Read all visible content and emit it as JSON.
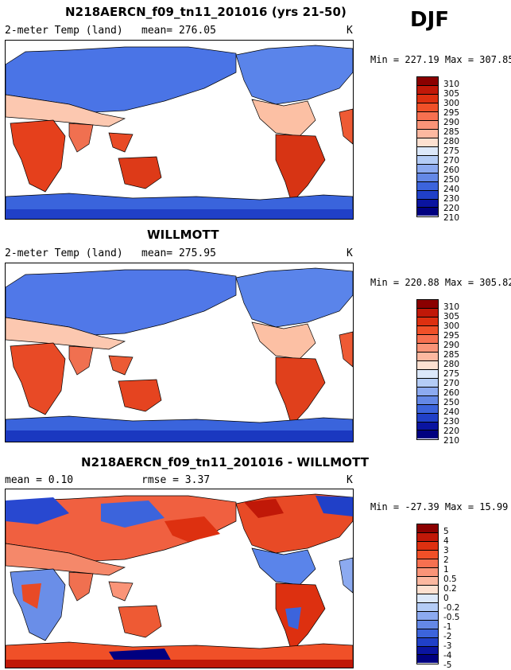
{
  "season": "DJF",
  "panels": [
    {
      "title": "N218AERCN_f09_tn11_201016 (yrs 21-50)",
      "left_label": "2-meter Temp (land)",
      "mid_label": "mean= 276.05",
      "units": "K",
      "minmax": "Min = 227.19 Max = 307.85",
      "levels": [
        "310",
        "305",
        "300",
        "295",
        "290",
        "285",
        "280",
        "275",
        "270",
        "260",
        "250",
        "240",
        "230",
        "220",
        "210"
      ]
    },
    {
      "title": "WILLMOTT",
      "left_label": "2-meter Temp (land)",
      "mid_label": "mean= 275.95",
      "units": "K",
      "minmax": "Min = 220.88 Max = 305.82",
      "levels": [
        "310",
        "305",
        "300",
        "295",
        "290",
        "285",
        "280",
        "275",
        "270",
        "260",
        "250",
        "240",
        "230",
        "220",
        "210"
      ]
    },
    {
      "title": "N218AERCN_f09_tn11_201016 - WILLMOTT",
      "left_label": "mean =   0.10",
      "mid_label": "rmse =   3.37",
      "units": "K",
      "minmax": "Min = -27.39 Max =  15.99",
      "levels": [
        "5",
        "4",
        "3",
        "2",
        "1",
        "0.5",
        "0.2",
        "0",
        "-0.2",
        "-0.5",
        "-1",
        "-2",
        "-3",
        "-4",
        "-5"
      ]
    }
  ],
  "colors": {
    "scale": [
      "#8b0000",
      "#c01808",
      "#dd3010",
      "#f05028",
      "#f77050",
      "#fa9478",
      "#fcb8a0",
      "#fde0d0",
      "#dce8fa",
      "#b4ccf6",
      "#8caaf0",
      "#6488e6",
      "#3c64dc",
      "#2040c8",
      "#0a14a0",
      "#000080"
    ]
  }
}
